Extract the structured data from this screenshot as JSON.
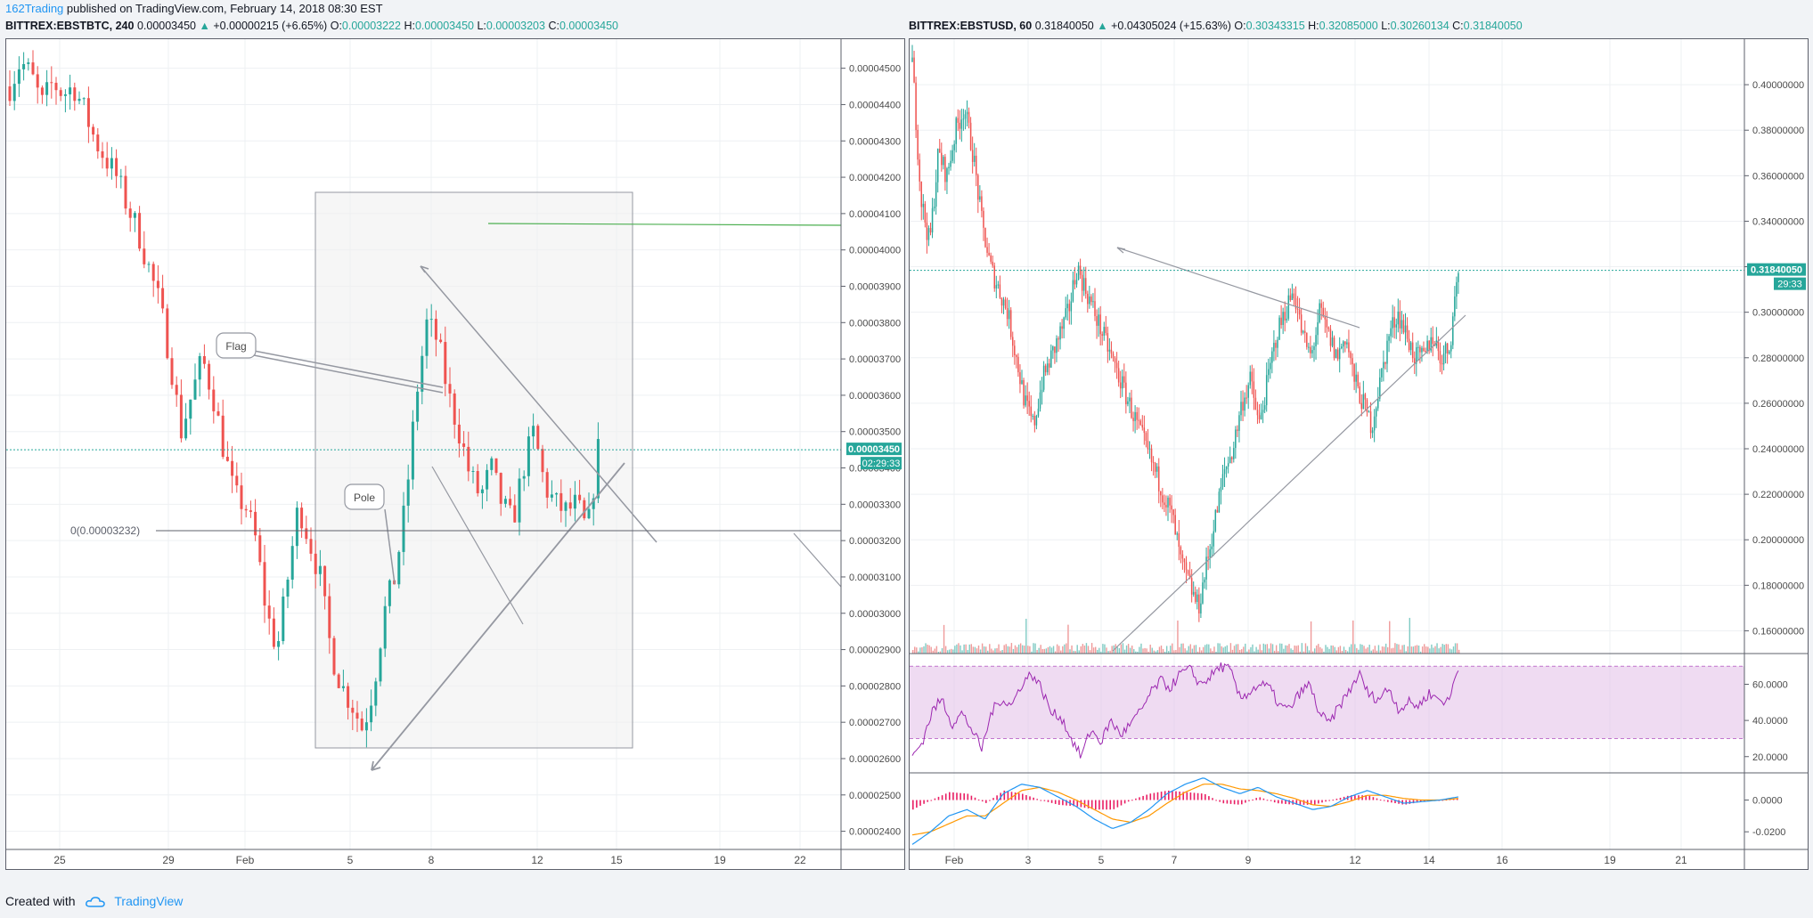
{
  "header": {
    "author": "162Trading",
    "published_text": "published on TradingView.com, February 14, 2018 08:30 EST"
  },
  "left_legend": {
    "symbol": "BITTREX:EBSTBTC, 240",
    "price": "0.00003450",
    "change": "+0.00000215 (+6.65%)",
    "o_label": "O:",
    "o": "0.00003222",
    "h_label": "H:",
    "h": "0.00003450",
    "l_label": "L:",
    "l": "0.00003203",
    "c_label": "C:",
    "c": "0.00003450"
  },
  "right_legend": {
    "symbol": "BITTREX:EBSTUSD, 60",
    "price": "0.31840050",
    "change": "+0.04305024 (+15.63%)",
    "o_label": "O:",
    "o": "0.30343315",
    "h_label": "H:",
    "h": "0.32085000",
    "l_label": "L:",
    "l": "0.30260134",
    "c_label": "C:",
    "c": "0.31840050"
  },
  "footer": {
    "created_with": "Created with",
    "brand": "TradingView"
  },
  "colors": {
    "up": "#26a69a",
    "down": "#ef5350",
    "accent": "#2196f3",
    "rsi": "#9c27b0",
    "macd": "#2196f3",
    "signal": "#ff9800",
    "hist": "#e91e63"
  },
  "chart_data": [
    {
      "type": "candlestick",
      "symbol": "BITTREX:EBSTBTC",
      "interval": "240",
      "ylim": [
        2.35e-05,
        4.58e-05
      ],
      "y_ticks": [
        "0.00004500",
        "0.00004400",
        "0.00004300",
        "0.00004200",
        "0.00004100",
        "0.00004000",
        "0.00003900",
        "0.00003800",
        "0.00003700",
        "0.00003600",
        "0.00003500",
        "0.00003400",
        "0.00003300",
        "0.00003200",
        "0.00003100",
        "0.00003000",
        "0.00002900",
        "0.00002800",
        "0.00002700",
        "0.00002600",
        "0.00002500",
        "0.00002400"
      ],
      "x_ticks": [
        "25",
        "29",
        "Feb",
        "5",
        "8",
        "12",
        "15",
        "19",
        "22"
      ],
      "last_price_label": "0.00003450",
      "countdown_label": "02:29:33",
      "last_price": 3.45e-05,
      "horizontal_line": {
        "label": "0(0.00003232)",
        "value": 3.232e-05
      },
      "resistance_level": 4.05e-05,
      "annotations": [
        "Flag",
        "Pole"
      ],
      "close_path": [
        4.45e-05,
        4.52e-05,
        4.48e-05,
        4.4e-05,
        4.46e-05,
        4.43e-05,
        4.45e-05,
        4.38e-05,
        4.3e-05,
        4.25e-05,
        4.2e-05,
        4.12e-05,
        4.05e-05,
        3.95e-05,
        3.85e-05,
        3.7e-05,
        3.5e-05,
        3.6e-05,
        3.7e-05,
        3.6e-05,
        3.45e-05,
        3.32e-05,
        3.3e-05,
        3.2e-05,
        3e-05,
        2.9e-05,
        3.1e-05,
        3.3e-05,
        3.2e-05,
        3.1e-05,
        2.9e-05,
        2.8e-05,
        2.75e-05,
        2.68e-05,
        2.8e-05,
        3e-05,
        3.1e-05,
        3.3e-05,
        3.6e-05,
        3.8e-05,
        3.75e-05,
        3.6e-05,
        3.5e-05,
        3.38e-05,
        3.32e-05,
        3.4e-05,
        3.3e-05,
        3.25e-05,
        3.4e-05,
        3.5e-05,
        3.35e-05,
        3.3e-05,
        3.28e-05,
        3.3e-05,
        3.22e-05,
        3.45e-05
      ]
    },
    {
      "type": "candlestick",
      "symbol": "BITTREX:EBSTUSD",
      "interval": "60",
      "ylim": [
        0.15,
        0.42
      ],
      "y_ticks": [
        "0.40000000",
        "0.38000000",
        "0.36000000",
        "0.34000000",
        "0.32000000",
        "0.30000000",
        "0.28000000",
        "0.26000000",
        "0.24000000",
        "0.22000000",
        "0.20000000",
        "0.18000000",
        "0.16000000"
      ],
      "x_ticks": [
        "Feb",
        "3",
        "5",
        "7",
        "9",
        "12",
        "14",
        "16",
        "19",
        "21"
      ],
      "last_price_label": "0.31840050",
      "countdown_label": "29:33",
      "last_price": 0.3184,
      "close_path": [
        0.41,
        0.35,
        0.33,
        0.37,
        0.36,
        0.38,
        0.39,
        0.37,
        0.34,
        0.32,
        0.31,
        0.3,
        0.28,
        0.26,
        0.25,
        0.27,
        0.28,
        0.29,
        0.3,
        0.32,
        0.31,
        0.3,
        0.29,
        0.28,
        0.27,
        0.26,
        0.25,
        0.24,
        0.23,
        0.22,
        0.21,
        0.19,
        0.18,
        0.17,
        0.19,
        0.21,
        0.23,
        0.24,
        0.26,
        0.27,
        0.25,
        0.27,
        0.29,
        0.3,
        0.31,
        0.29,
        0.28,
        0.3,
        0.29,
        0.28,
        0.29,
        0.27,
        0.26,
        0.25,
        0.27,
        0.29,
        0.3,
        0.29,
        0.28,
        0.28,
        0.29,
        0.28,
        0.285,
        0.32
      ],
      "rsi": {
        "y_ticks": [
          "60.0000",
          "40.0000",
          "20.0000"
        ],
        "ylim": [
          12,
          76
        ],
        "bands": [
          70,
          30
        ],
        "path": [
          20,
          28,
          45,
          52,
          38,
          44,
          35,
          24,
          45,
          52,
          48,
          60,
          66,
          58,
          44,
          42,
          30,
          20,
          35,
          28,
          40,
          32,
          38,
          45,
          55,
          62,
          58,
          66,
          68,
          60,
          64,
          70,
          68,
          52,
          56,
          60,
          58,
          48,
          46,
          55,
          60,
          44,
          38,
          48,
          56,
          66,
          54,
          52,
          58,
          46,
          50,
          48,
          55,
          52,
          50,
          70
        ]
      },
      "macd": {
        "y_ticks": [
          "0.0000",
          "-0.0200"
        ],
        "ylim": [
          -0.03,
          0.016
        ],
        "macd_path": [
          -0.028,
          -0.02,
          -0.01,
          -0.006,
          -0.012,
          0.004,
          0.01,
          0.008,
          0.002,
          -0.004,
          -0.012,
          -0.018,
          -0.014,
          -0.006,
          0.004,
          0.01,
          0.014,
          0.008,
          0.004,
          0.008,
          0.002,
          -0.002,
          -0.006,
          -0.004,
          0.002,
          0.006,
          0.002,
          -0.002,
          -0.001,
          0.0,
          0.002
        ],
        "signal_path": [
          -0.022,
          -0.02,
          -0.015,
          -0.01,
          -0.01,
          -0.002,
          0.006,
          0.008,
          0.005,
          0.0,
          -0.006,
          -0.012,
          -0.014,
          -0.01,
          -0.002,
          0.005,
          0.01,
          0.01,
          0.007,
          0.006,
          0.004,
          0.001,
          -0.003,
          -0.004,
          -0.001,
          0.003,
          0.003,
          0.001,
          0.0,
          0.0,
          0.001
        ]
      }
    }
  ]
}
